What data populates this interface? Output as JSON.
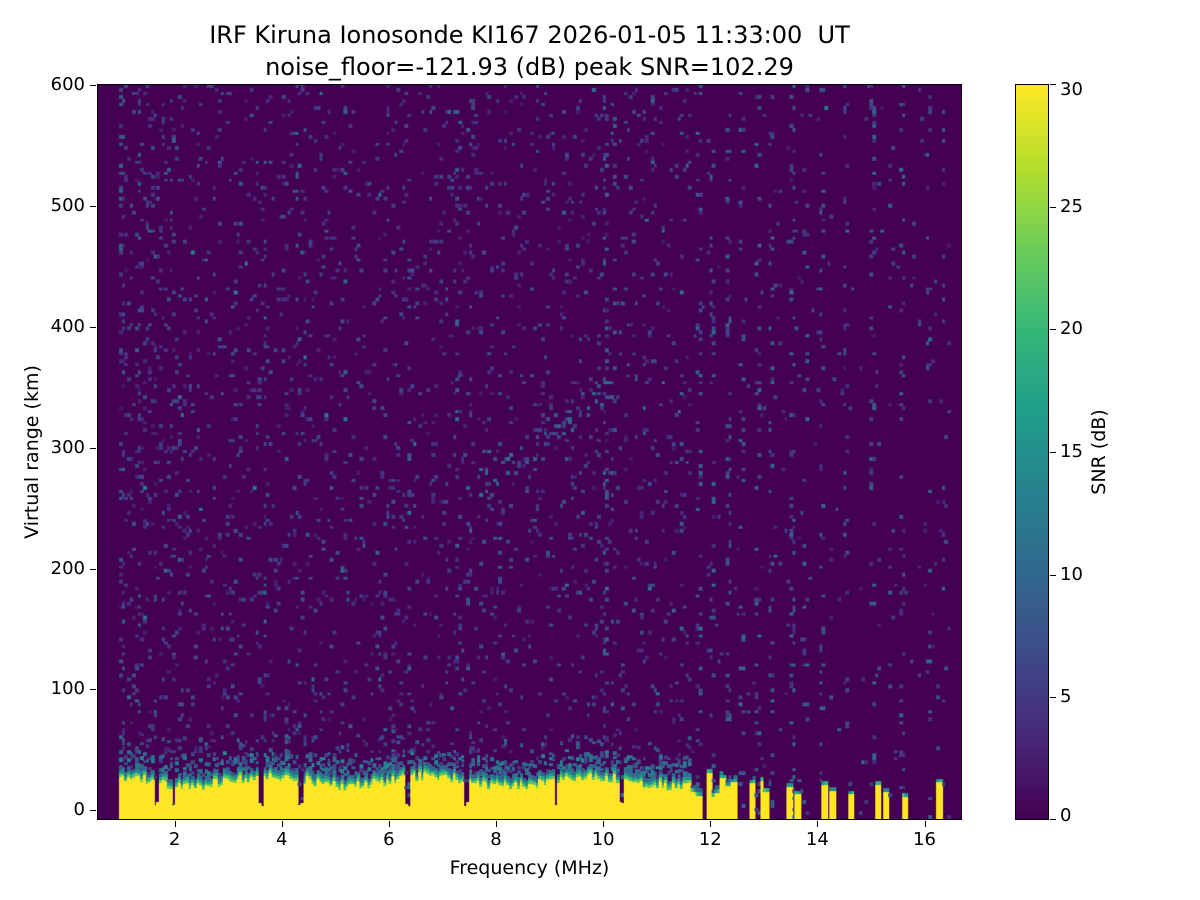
{
  "figure": {
    "title_line1": "IRF Kiruna Ionosonde KI167 2026-01-05 11:33:00  UT",
    "title_line2": "noise_floor=-121.93 (dB) peak SNR=102.29"
  },
  "chart_data": {
    "type": "heatmap",
    "title": "IRF Kiruna Ionosonde KI167 2026-01-05 11:33:00  UT",
    "subtitle": "noise_floor=-121.93 (dB) peak SNR=102.29",
    "station": "IRF Kiruna Ionosonde KI167",
    "timestamp_ut": "2026-01-05 11:33:00",
    "noise_floor_db": -121.93,
    "peak_snr_db": 102.29,
    "xlabel": "Frequency (MHz)",
    "ylabel": "Virtual range (km)",
    "xlim": [
      0.55,
      16.7
    ],
    "ylim": [
      -8,
      601
    ],
    "xticks": [
      2,
      4,
      6,
      8,
      10,
      12,
      14,
      16
    ],
    "yticks": [
      0,
      100,
      200,
      300,
      400,
      500,
      600
    ],
    "grid": false,
    "colorbar": {
      "label": "SNR (dB)",
      "min": 0,
      "max": 30,
      "ticks": [
        0,
        5,
        10,
        15,
        20,
        25,
        30
      ],
      "colormap": "viridis"
    },
    "swept_freq_range_mhz": [
      0.95,
      16.5
    ],
    "features": {
      "background_snr_db": 0,
      "ground_echo": {
        "freq_range_mhz": [
          0.95,
          11.65
        ],
        "solid_top_km_mean": 24,
        "fringe_top_km": 42,
        "sporadic_top_km": 58,
        "snr_db": 30
      },
      "band_notches_mhz": [
        1.63,
        1.95,
        3.58,
        4.33,
        6.32,
        7.44,
        9.1,
        10.34
      ],
      "broken_band": {
        "freq_range_mhz": [
          11.65,
          13.15
        ],
        "top_km_range": [
          10,
          30
        ],
        "duty_cycle": 0.55,
        "snr_db": 30
      },
      "isolated_bars": [
        [
          13.5,
          18
        ],
        [
          13.64,
          12
        ],
        [
          14.15,
          20
        ],
        [
          14.3,
          15
        ],
        [
          14.62,
          12
        ],
        [
          15.15,
          20
        ],
        [
          15.3,
          14
        ],
        [
          15.62,
          10
        ],
        [
          16.28,
          22
        ]
      ],
      "rfi_stripes": [
        {
          "f": 0.98,
          "d": 0.12
        },
        {
          "f": 1.28,
          "d": 0.07
        },
        {
          "f": 2.05,
          "d": 0.06
        },
        {
          "f": 3.65,
          "d": 0.11
        },
        {
          "f": 4.28,
          "d": 0.06
        },
        {
          "f": 5.15,
          "d": 0.05
        },
        {
          "f": 6.35,
          "d": 0.06
        },
        {
          "f": 7.27,
          "d": 0.1
        },
        {
          "f": 7.47,
          "d": 0.07
        },
        {
          "f": 8.05,
          "d": 0.05
        },
        {
          "f": 9.3,
          "d": 0.05
        },
        {
          "f": 10.02,
          "d": 0.12
        },
        {
          "f": 10.18,
          "d": 0.07
        },
        {
          "f": 10.9,
          "d": 0.05
        },
        {
          "f": 11.45,
          "d": 0.06
        },
        {
          "f": 11.78,
          "d": 0.12
        },
        {
          "f": 12.02,
          "d": 0.1
        },
        {
          "f": 12.32,
          "d": 0.12
        },
        {
          "f": 12.58,
          "d": 0.09
        },
        {
          "f": 12.88,
          "d": 0.11
        },
        {
          "f": 13.12,
          "d": 0.09
        },
        {
          "f": 13.52,
          "d": 0.11
        },
        {
          "f": 13.78,
          "d": 0.06
        },
        {
          "f": 14.08,
          "d": 0.1
        },
        {
          "f": 14.52,
          "d": 0.08
        },
        {
          "f": 15.02,
          "d": 0.09
        },
        {
          "f": 15.35,
          "d": 0.06
        },
        {
          "f": 15.58,
          "d": 0.08
        },
        {
          "f": 16.08,
          "d": 0.07
        },
        {
          "f": 16.35,
          "d": 0.06
        }
      ],
      "echo_trace": {
        "freq_range_mhz": [
          7.6,
          10.3
        ],
        "virtual_range_km": [
          265,
          355
        ],
        "snr_db_range": [
          4,
          11
        ]
      },
      "speckle_noise": {
        "density_low": 0.05,
        "density_high": 0.013,
        "snr_db_range": [
          2,
          12
        ]
      }
    }
  }
}
